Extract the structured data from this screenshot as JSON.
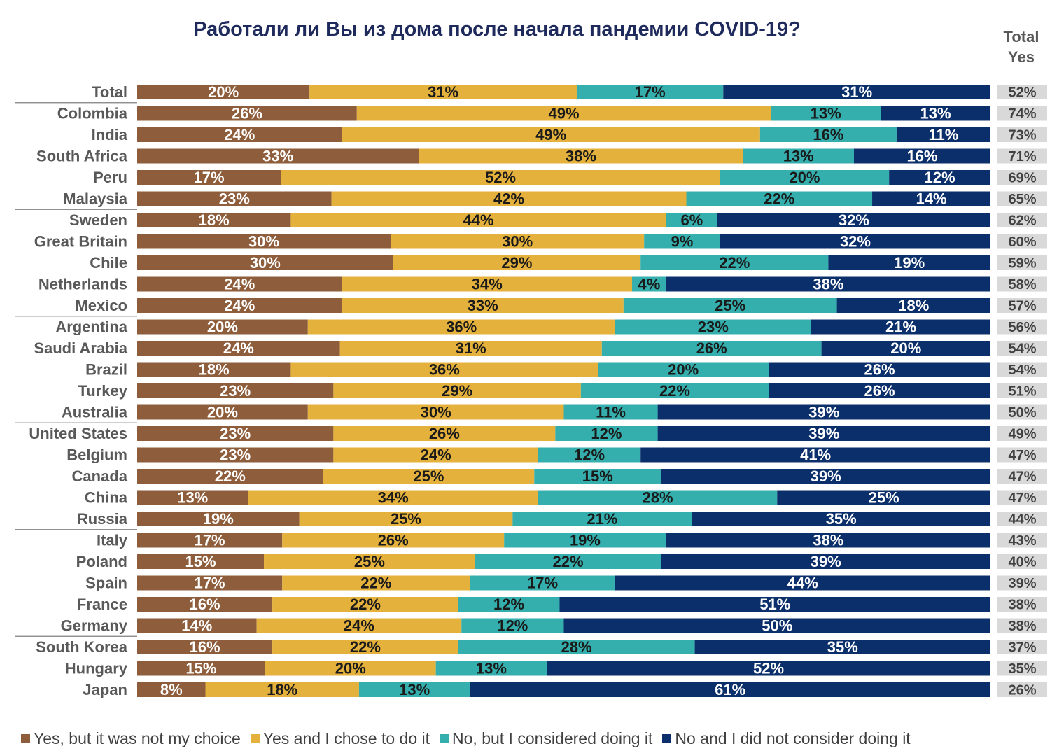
{
  "title": "Работали ли Вы из дома после начала пандемии COVID-19?",
  "total_header": [
    "Total",
    "Yes"
  ],
  "colors": {
    "yes_not_choice": "#8e5d3b",
    "yes_chose": "#e4b13d",
    "no_considered": "#35afad",
    "no_not_considered": "#0b2f6b",
    "total_box": "#d9d9d9",
    "separator": "#7f7f7f"
  },
  "legend": [
    {
      "label": "Yes, but it was not my choice",
      "color": "#8e5d3b"
    },
    {
      "label": "Yes and I chose to do it",
      "color": "#e4b13d"
    },
    {
      "label": "No, but I considered doing it",
      "color": "#35afad"
    },
    {
      "label": "No and I did not consider doing it",
      "color": "#0b2f6b"
    }
  ],
  "chart_data": {
    "type": "bar",
    "orientation": "horizontal",
    "stacked": true,
    "percent": true,
    "title": "Работали ли Вы из дома после начала пандемии COVID-19?",
    "categories": [
      "Total",
      "Colombia",
      "India",
      "South Africa",
      "Peru",
      "Malaysia",
      "Sweden",
      "Great Britain",
      "Chile",
      "Netherlands",
      "Mexico",
      "Argentina",
      "Saudi Arabia",
      "Brazil",
      "Turkey",
      "Australia",
      "United States",
      "Belgium",
      "Canada",
      "China",
      "Russia",
      "Italy",
      "Poland",
      "Spain",
      "France",
      "Germany",
      "South Korea",
      "Hungary",
      "Japan"
    ],
    "series": [
      {
        "name": "Yes, but it was not my choice",
        "values": [
          20,
          26,
          24,
          33,
          17,
          23,
          18,
          30,
          30,
          24,
          24,
          20,
          24,
          18,
          23,
          20,
          23,
          23,
          22,
          13,
          19,
          17,
          15,
          17,
          16,
          14,
          16,
          15,
          8
        ]
      },
      {
        "name": "Yes and I chose to do it",
        "values": [
          31,
          49,
          49,
          38,
          52,
          42,
          44,
          30,
          29,
          34,
          33,
          36,
          31,
          36,
          29,
          30,
          26,
          24,
          25,
          34,
          25,
          26,
          25,
          22,
          22,
          24,
          22,
          20,
          18
        ]
      },
      {
        "name": "No, but I considered doing it",
        "values": [
          17,
          13,
          16,
          13,
          20,
          22,
          6,
          9,
          22,
          4,
          25,
          23,
          26,
          20,
          22,
          11,
          12,
          12,
          15,
          28,
          21,
          19,
          22,
          17,
          12,
          12,
          28,
          13,
          13
        ]
      },
      {
        "name": "No and I did not consider doing it",
        "values": [
          31,
          13,
          11,
          16,
          12,
          14,
          32,
          32,
          19,
          38,
          18,
          21,
          20,
          26,
          26,
          39,
          39,
          41,
          39,
          25,
          35,
          38,
          39,
          44,
          51,
          50,
          35,
          52,
          61
        ]
      }
    ],
    "total_yes": [
      "52%",
      "74%",
      "73%",
      "71%",
      "69%",
      "65%",
      "62%",
      "60%",
      "59%",
      "58%",
      "57%",
      "56%",
      "54%",
      "54%",
      "51%",
      "50%",
      "49%",
      "47%",
      "47%",
      "47%",
      "44%",
      "43%",
      "40%",
      "39%",
      "38%",
      "38%",
      "37%",
      "35%",
      "26%"
    ],
    "xlim": [
      0,
      100
    ],
    "grid": false,
    "legend_position": "bottom"
  }
}
